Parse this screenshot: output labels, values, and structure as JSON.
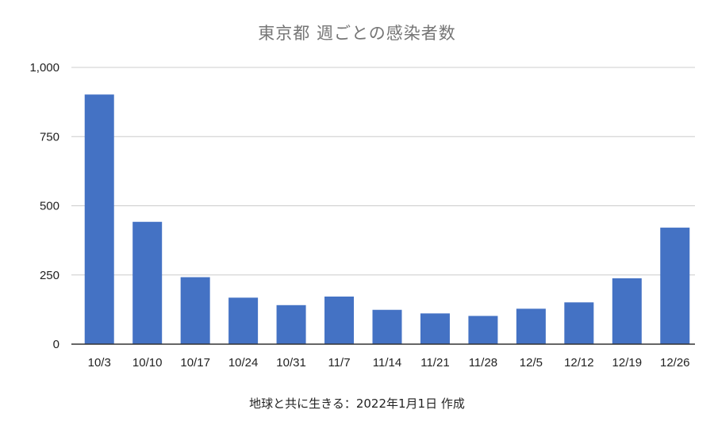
{
  "chart_data": {
    "type": "bar",
    "title": "東京都 週ごとの感染者数",
    "caption": "地球と共に生きる：2022年1月1日 作成",
    "xlabel": "",
    "ylabel": "",
    "categories": [
      "10/3",
      "10/10",
      "10/17",
      "10/24",
      "10/31",
      "11/7",
      "11/14",
      "11/21",
      "11/28",
      "12/5",
      "12/12",
      "12/19",
      "12/26"
    ],
    "series": [
      {
        "values": [
          902,
          442,
          242,
          168,
          141,
          172,
          124,
          111,
          102,
          128,
          151,
          238,
          421
        ]
      }
    ],
    "ylim": [
      0,
      1000
    ],
    "yticks": [
      0,
      250,
      500,
      750,
      1000
    ],
    "ytick_labels": [
      "0",
      "250",
      "500",
      "750",
      "1,000"
    ],
    "grid": true,
    "legend": "none",
    "bar_color": "#4472c4",
    "grid_color": "#cccccc",
    "axis_color": "#333333"
  }
}
